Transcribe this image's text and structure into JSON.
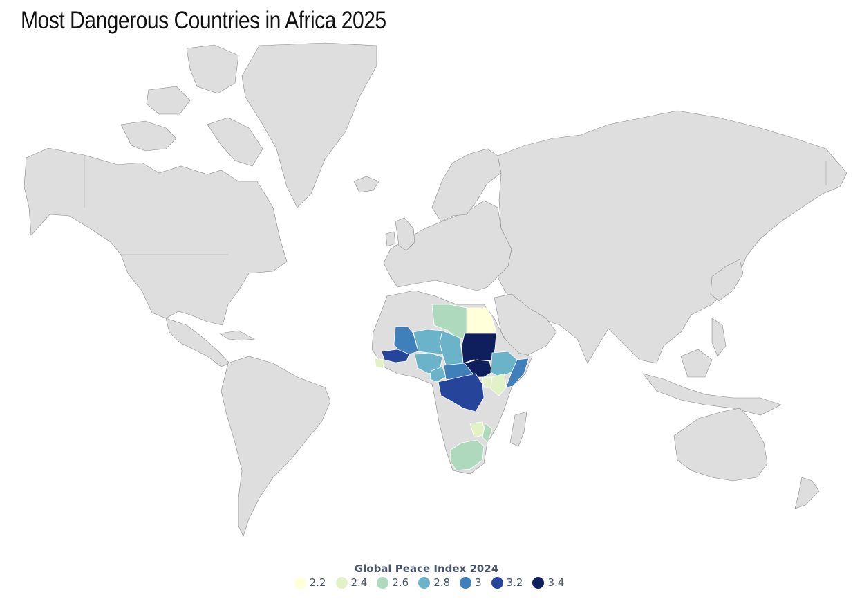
{
  "title": "Most Dangerous Countries in Africa 2025",
  "legend": {
    "title": "Global Peace Index 2024",
    "items": [
      {
        "label": "2.2",
        "color": "#ffffd9"
      },
      {
        "label": "2.4",
        "color": "#e1f2c6"
      },
      {
        "label": "2.6",
        "color": "#aed9bc"
      },
      {
        "label": "2.8",
        "color": "#6bb3c8"
      },
      {
        "label": "3",
        "color": "#3f7fba"
      },
      {
        "label": "3.2",
        "color": "#25449a"
      },
      {
        "label": "3.4",
        "color": "#0f1f5e"
      }
    ]
  },
  "map": {
    "base_color": "#dedede",
    "countries": [
      {
        "name": "Egypt",
        "value": 2.2
      },
      {
        "name": "Libya",
        "value": 2.6
      },
      {
        "name": "Sudan",
        "value": 3.4
      },
      {
        "name": "South Sudan",
        "value": 3.4
      },
      {
        "name": "Mali",
        "value": 3.0
      },
      {
        "name": "Burkina Faso",
        "value": 3.2
      },
      {
        "name": "Niger",
        "value": 2.8
      },
      {
        "name": "Chad",
        "value": 2.8
      },
      {
        "name": "Nigeria",
        "value": 2.8
      },
      {
        "name": "Cameroon",
        "value": 2.8
      },
      {
        "name": "Central African Republic",
        "value": 3.0
      },
      {
        "name": "Democratic Republic of the Congo",
        "value": 3.2
      },
      {
        "name": "Ethiopia",
        "value": 2.8
      },
      {
        "name": "Somalia",
        "value": 3.0
      },
      {
        "name": "Kenya",
        "value": 2.4
      },
      {
        "name": "Uganda",
        "value": 2.4
      },
      {
        "name": "Zimbabwe",
        "value": 2.4
      },
      {
        "name": "South Africa",
        "value": 2.6
      },
      {
        "name": "Sierra Leone",
        "value": 2.4
      },
      {
        "name": "Mozambique",
        "value": 2.6
      }
    ]
  }
}
